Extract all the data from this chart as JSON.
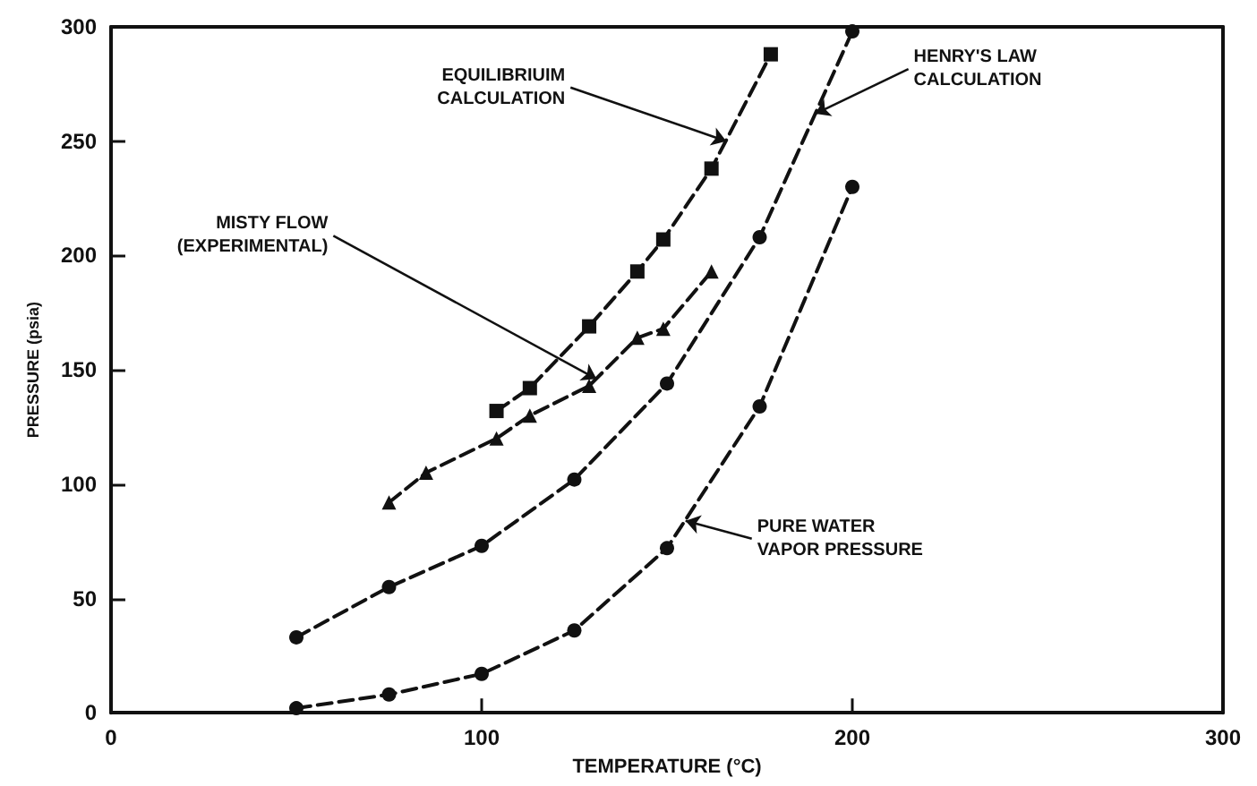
{
  "chart_data": {
    "type": "line",
    "xlabel": "TEMPERATURE (°C)",
    "ylabel": "PRESSURE (psia)",
    "xlim": [
      0,
      300
    ],
    "xticks": [
      0,
      100,
      200,
      300
    ],
    "ylim": [
      0,
      300
    ],
    "yticks": [
      0,
      50,
      100,
      150,
      200,
      250,
      300
    ],
    "grid": false,
    "line_style": "dashed",
    "series": [
      {
        "color": "#111111",
        "marker": "square",
        "x": [
          104,
          113,
          129,
          142,
          149,
          162,
          178
        ],
        "values": [
          132,
          142,
          169,
          193,
          207,
          238,
          288
        ]
      },
      {
        "color": "#111111",
        "marker": "triangle",
        "x": [
          75,
          85,
          104,
          113,
          129,
          142,
          149,
          162
        ],
        "values": [
          92,
          105,
          120,
          130,
          143,
          164,
          168,
          193
        ]
      },
      {
        "color": "#111111",
        "marker": "circle",
        "x": [
          50,
          75,
          100,
          125,
          150,
          175,
          200
        ],
        "values": [
          33,
          55,
          73,
          102,
          144,
          208,
          298
        ]
      },
      {
        "color": "#111111",
        "marker": "circle",
        "x": [
          50,
          75,
          100,
          125,
          150,
          175,
          200
        ],
        "values": [
          2,
          8,
          17,
          36,
          72,
          134,
          230
        ]
      }
    ],
    "annotations": [
      {
        "text": "EQUILIBRIUIM\nCALCULATION",
        "x": 166,
        "y": 250
      },
      {
        "text": "HENRY'S LAW\nCALCULATION",
        "x": 190,
        "y": 262
      },
      {
        "text": "MISTY FLOW\n(EXPERIMENTAL)",
        "x": 131,
        "y": 146
      },
      {
        "text": "PURE WATER\nVAPOR PRESSURE",
        "x": 155,
        "y": 84
      }
    ]
  }
}
